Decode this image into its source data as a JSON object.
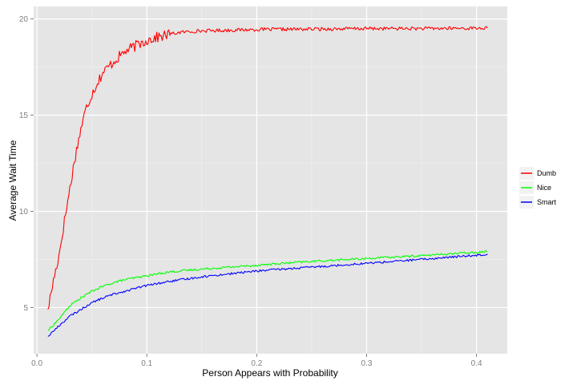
{
  "chart_data": {
    "type": "line",
    "title": "",
    "xlabel": "Person Appears with Probability",
    "ylabel": "Average Wait Time",
    "xlim": [
      -0.003,
      0.428
    ],
    "ylim": [
      2.6,
      20.65
    ],
    "x_ticks": [
      0.0,
      0.1,
      0.2,
      0.3,
      0.4
    ],
    "x_tick_labels": [
      "0.0",
      "0.1",
      "0.2",
      "0.3",
      "0.4"
    ],
    "y_ticks": [
      5,
      10,
      15,
      20
    ],
    "y_tick_labels": [
      "5",
      "10",
      "15",
      "20"
    ],
    "grid": true,
    "legend_position": "right",
    "series": [
      {
        "name": "Dumb",
        "color": "#ff0000",
        "x": [
          0.01,
          0.015,
          0.02,
          0.025,
          0.03,
          0.035,
          0.04,
          0.045,
          0.05,
          0.055,
          0.06,
          0.065,
          0.07,
          0.08,
          0.09,
          0.1,
          0.11,
          0.12,
          0.13,
          0.14,
          0.15,
          0.18,
          0.2,
          0.25,
          0.3,
          0.35,
          0.4,
          0.41
        ],
        "y": [
          4.9,
          6.4,
          7.7,
          9.5,
          11.2,
          12.9,
          14.3,
          15.4,
          16.1,
          16.7,
          17.2,
          17.5,
          17.8,
          18.3,
          18.6,
          18.9,
          19.05,
          19.2,
          19.3,
          19.35,
          19.38,
          19.42,
          19.45,
          19.47,
          19.5,
          19.5,
          19.52,
          19.52
        ]
      },
      {
        "name": "Nice",
        "color": "#00ff00",
        "x": [
          0.01,
          0.02,
          0.03,
          0.04,
          0.05,
          0.06,
          0.07,
          0.08,
          0.1,
          0.12,
          0.15,
          0.2,
          0.25,
          0.3,
          0.35,
          0.4,
          0.41
        ],
        "y": [
          3.8,
          4.4,
          5.1,
          5.5,
          5.85,
          6.1,
          6.3,
          6.45,
          6.65,
          6.85,
          7.0,
          7.2,
          7.4,
          7.55,
          7.7,
          7.88,
          7.92
        ]
      },
      {
        "name": "Smart",
        "color": "#0000ff",
        "x": [
          0.01,
          0.02,
          0.03,
          0.04,
          0.05,
          0.06,
          0.07,
          0.08,
          0.1,
          0.12,
          0.15,
          0.2,
          0.25,
          0.3,
          0.35,
          0.4,
          0.41
        ],
        "y": [
          3.5,
          4.05,
          4.55,
          4.9,
          5.25,
          5.5,
          5.7,
          5.85,
          6.15,
          6.35,
          6.6,
          6.9,
          7.1,
          7.3,
          7.5,
          7.72,
          7.78
        ]
      }
    ]
  }
}
